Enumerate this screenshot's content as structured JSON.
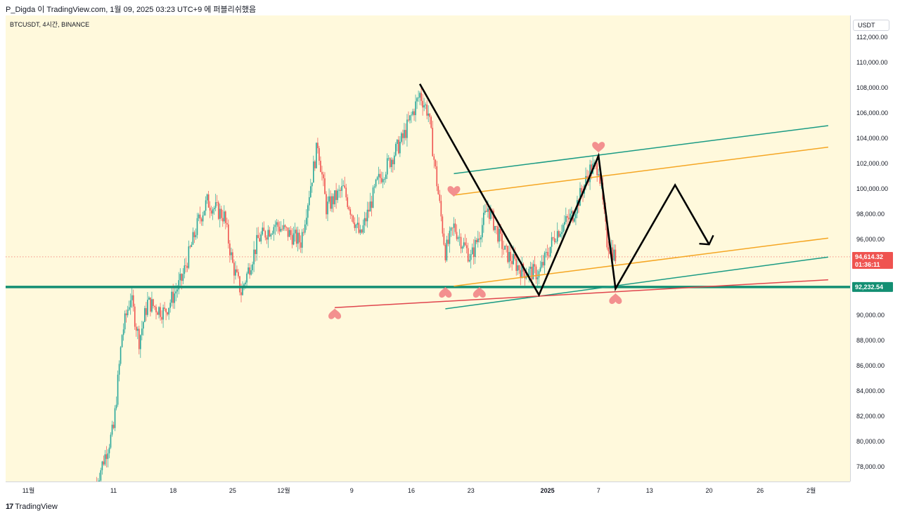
{
  "header": {
    "caption": "P_Digda 이 TradingView.com, 1월 09, 2025 03:23 UTC+9 에 퍼블리쉬했음"
  },
  "symbol_label": "BTCUSDT, 4시간, BINANCE",
  "currency": "USDT",
  "footer": {
    "logo": "17",
    "brand": "TradingView"
  },
  "colors": {
    "up": "#26a69a",
    "down": "#ef5350",
    "background": "#fff9dc",
    "teal_line": "#1a9b84",
    "orange_line": "#f5a623",
    "red_line": "#e0454d",
    "support": "#138f73",
    "marker": "#f28a8a",
    "last_price_label": "#ef5350",
    "support_label": "#138f73"
  },
  "chart_data": {
    "type": "candlestick",
    "symbol": "BTCUSDT",
    "interval": "4시간",
    "exchange": "BINANCE",
    "currency": "USDT",
    "y_ticks": [
      "112,000.00",
      "110,000.00",
      "108,000.00",
      "106,000.00",
      "104,000.00",
      "102,000.00",
      "100,000.00",
      "98,000.00",
      "96,000.00",
      "90,000.00",
      "88,000.00",
      "86,000.00",
      "84,000.00",
      "82,000.00",
      "80,000.00",
      "78,000.00"
    ],
    "y_tick_values": [
      112000,
      110000,
      108000,
      106000,
      104000,
      102000,
      100000,
      98000,
      96000,
      90000,
      88000,
      86000,
      84000,
      82000,
      80000,
      78000
    ],
    "x_ticks": [
      "11월",
      "11",
      "18",
      "25",
      "12월",
      "9",
      "16",
      "23",
      "2025",
      "7",
      "13",
      "20",
      "26",
      "2월"
    ],
    "x_tick_dates": [
      "2024-11-01",
      "2024-11-11",
      "2024-11-18",
      "2024-11-25",
      "2024-12-01",
      "2024-12-09",
      "2024-12-16",
      "2024-12-23",
      "2025-01-01",
      "2025-01-07",
      "2025-01-13",
      "2025-01-20",
      "2025-01-26",
      "2025-02-01"
    ],
    "price_path": [
      [
        "2024-11-09",
        76800
      ],
      [
        "2024-11-11",
        81000
      ],
      [
        "2024-11-12",
        88500
      ],
      [
        "2024-11-13",
        91500
      ],
      [
        "2024-11-14",
        88000
      ],
      [
        "2024-11-15",
        91000
      ],
      [
        "2024-11-17",
        90200
      ],
      [
        "2024-11-19",
        92800
      ],
      [
        "2024-11-21",
        97500
      ],
      [
        "2024-11-22",
        99000
      ],
      [
        "2024-11-24",
        97800
      ],
      [
        "2024-11-25",
        94000
      ],
      [
        "2024-11-26",
        91800
      ],
      [
        "2024-11-28",
        96000
      ],
      [
        "2024-11-30",
        97200
      ],
      [
        "2024-12-03",
        95800
      ],
      [
        "2024-12-05",
        103600
      ],
      [
        "2024-12-06",
        98500
      ],
      [
        "2024-12-08",
        100000
      ],
      [
        "2024-12-10",
        96200
      ],
      [
        "2024-12-12",
        100500
      ],
      [
        "2024-12-15",
        104000
      ],
      [
        "2024-12-17",
        107500
      ],
      [
        "2024-12-18",
        106000
      ],
      [
        "2024-12-20",
        95000
      ],
      [
        "2024-12-21",
        97000
      ],
      [
        "2024-12-23",
        94500
      ],
      [
        "2024-12-25",
        98500
      ],
      [
        "2024-12-27",
        95000
      ],
      [
        "2024-12-29",
        93500
      ],
      [
        "2024-12-31",
        93300
      ],
      [
        "2025-01-02",
        96500
      ],
      [
        "2025-01-04",
        98000
      ],
      [
        "2025-01-06",
        101500
      ],
      [
        "2025-01-07",
        101800
      ],
      [
        "2025-01-08",
        95800
      ],
      [
        "2025-01-09",
        94614
      ]
    ],
    "last_price": "94,614.32",
    "countdown": "01:36:11",
    "support_level": "92,232.54",
    "support_value": 92232.54,
    "drawings": {
      "black_zigzag": [
        [
          "2024-12-17",
          108300
        ],
        [
          "2024-12-31",
          91600
        ],
        [
          "2025-01-07",
          102600
        ],
        [
          "2025-01-09",
          92100
        ],
        [
          "2025-01-16",
          100300
        ],
        [
          "2025-01-20",
          95600
        ]
      ],
      "arrow_head_at": [
        "2025-01-20",
        95600
      ],
      "teal_channel": [
        [
          [
            "2024-12-21",
            101200
          ],
          [
            "2025-02-03",
            105000
          ]
        ],
        [
          [
            "2024-12-20",
            90500
          ],
          [
            "2025-02-03",
            94600
          ]
        ]
      ],
      "orange_channel": [
        [
          [
            "2024-12-21",
            99500
          ],
          [
            "2025-02-03",
            103300
          ]
        ],
        [
          [
            "2024-12-21",
            92300
          ],
          [
            "2025-02-03",
            96100
          ]
        ]
      ],
      "red_trendline": [
        [
          "2024-12-07",
          90600
        ],
        [
          "2025-02-03",
          92800
        ]
      ],
      "markers": [
        {
          "type": "heart",
          "at": [
            "2024-12-21",
            99700
          ]
        },
        {
          "type": "heart",
          "at": [
            "2025-01-07",
            103200
          ]
        },
        {
          "type": "inverted-heart",
          "at": [
            "2024-12-07",
            90200
          ]
        },
        {
          "type": "inverted-heart",
          "at": [
            "2024-12-20",
            91900
          ]
        },
        {
          "type": "inverted-heart",
          "at": [
            "2024-12-24",
            91900
          ]
        },
        {
          "type": "inverted-heart",
          "at": [
            "2025-01-09",
            91400
          ]
        }
      ]
    }
  }
}
